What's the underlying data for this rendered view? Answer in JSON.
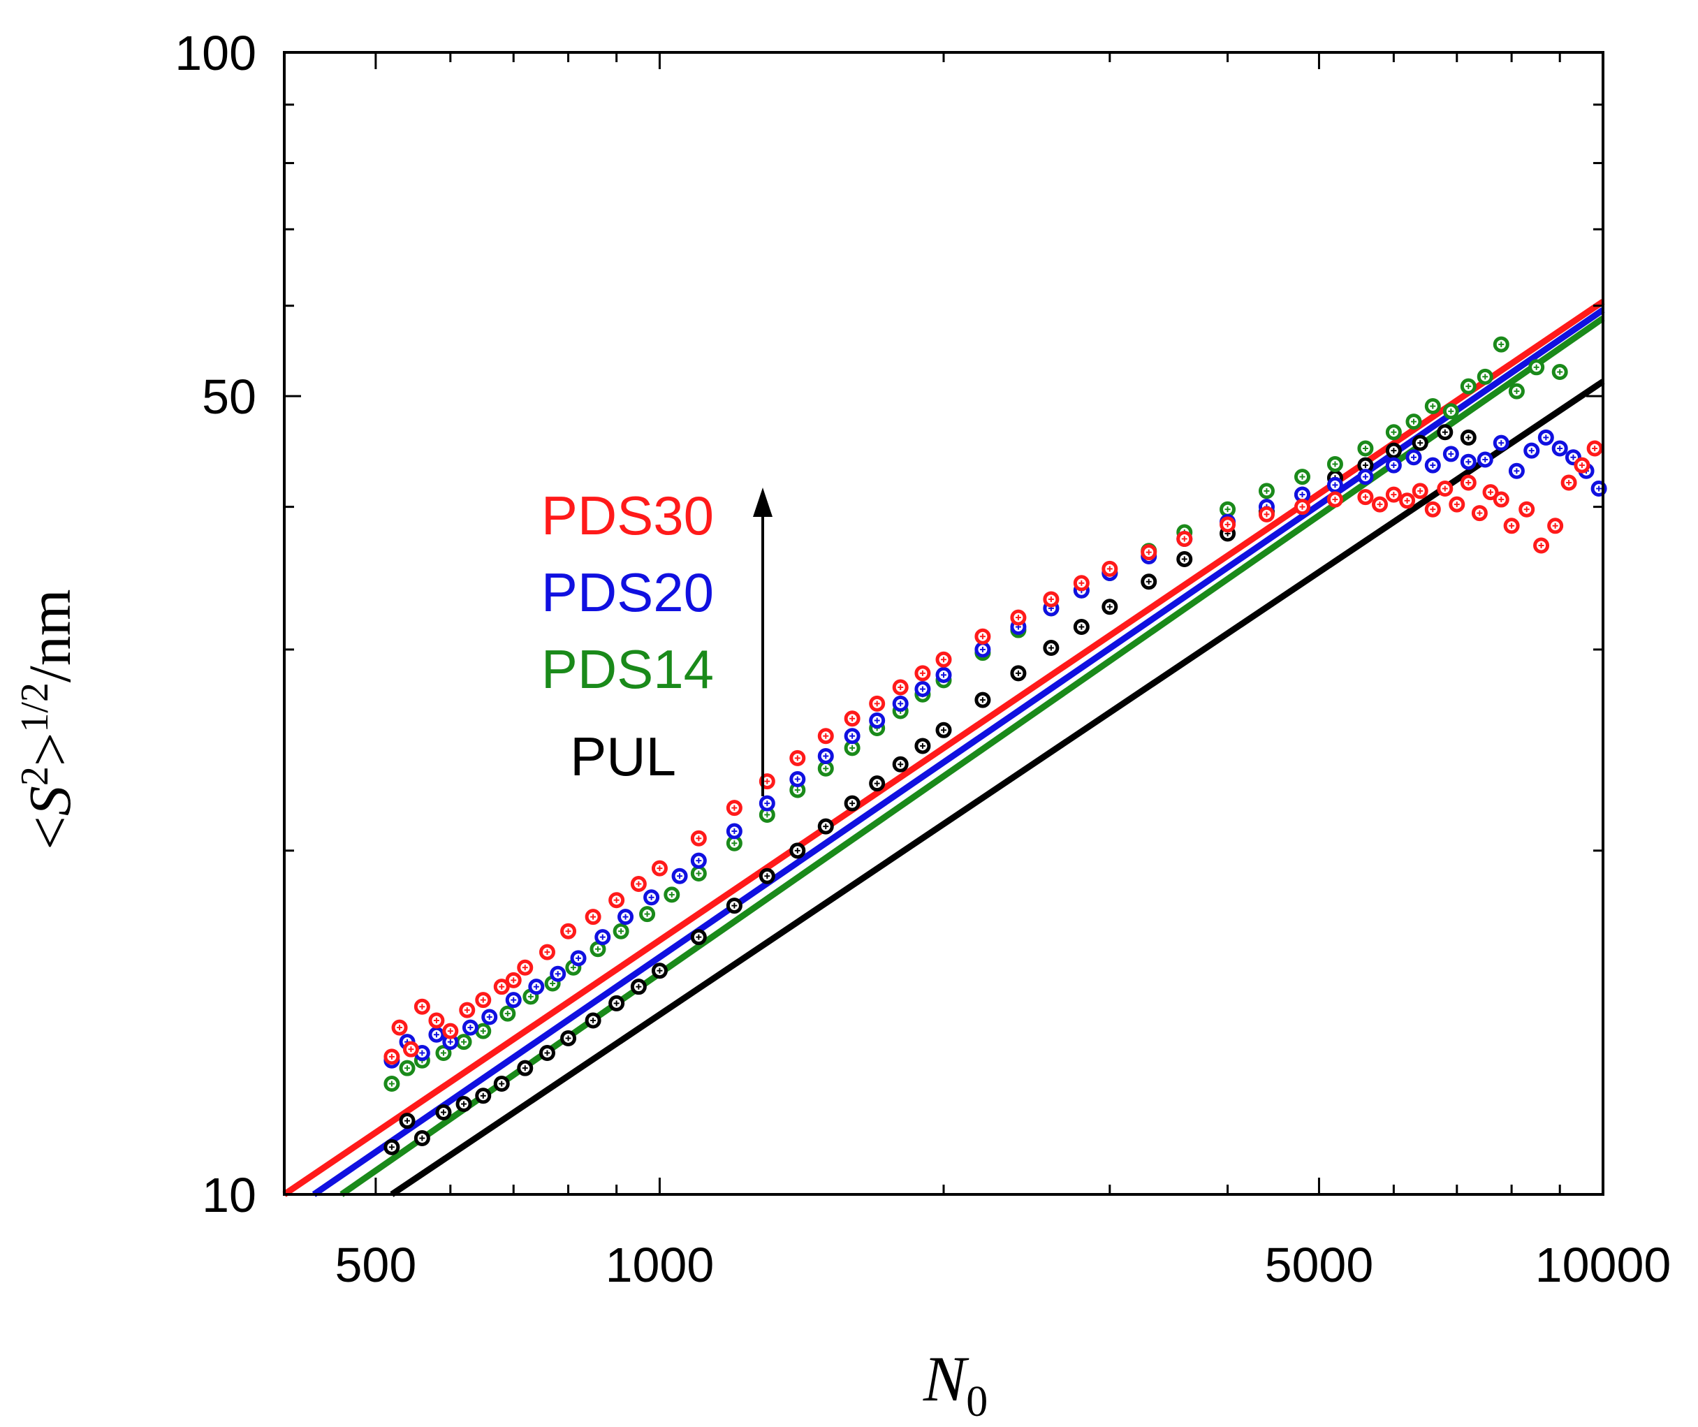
{
  "chart_data": {
    "type": "scatter",
    "title": "",
    "xlabel": "N_0",
    "xlabel_main": "N",
    "xlabel_sub": "0",
    "ylabel": "<S^2>^{1/2}/nm",
    "ylabel_parts": {
      "lt": "<",
      "s": "S",
      "sq": "2",
      "gt": ">",
      "half": "1/2",
      "unit": "/nm"
    },
    "xscale": "log",
    "yscale": "log",
    "xlim": [
      400,
      10000
    ],
    "ylim": [
      10,
      100
    ],
    "xticks": [
      {
        "value": 500,
        "label": "500"
      },
      {
        "value": 1000,
        "label": "1000"
      },
      {
        "value": 5000,
        "label": "5000"
      },
      {
        "value": 10000,
        "label": "10000"
      }
    ],
    "xminor": [
      600,
      700,
      800,
      900,
      2000,
      3000,
      4000,
      6000,
      7000,
      8000,
      9000
    ],
    "yticks": [
      {
        "value": 10,
        "label": "10"
      },
      {
        "value": 50,
        "label": "50"
      },
      {
        "value": 100,
        "label": "100"
      }
    ],
    "yminor": [
      20,
      30,
      40,
      60,
      70,
      80,
      90
    ],
    "grid": false,
    "legend_position": "center-left",
    "arrow_note": "increasing order",
    "series": [
      {
        "name": "PDS30",
        "color": "#ff1a1a",
        "fit": {
          "x": [
            400,
            10000
          ],
          "y": [
            10.0,
            60.5
          ]
        },
        "x": [
          520,
          530,
          545,
          560,
          580,
          600,
          625,
          650,
          680,
          700,
          720,
          760,
          800,
          850,
          900,
          950,
          1000,
          1100,
          1200,
          1300,
          1400,
          1500,
          1600,
          1700,
          1800,
          1900,
          2000,
          2200,
          2400,
          2600,
          2800,
          3000,
          3300,
          3600,
          4000,
          4400,
          4800,
          5200,
          5600,
          5800,
          6000,
          6200,
          6400,
          6600,
          6800,
          7000,
          7200,
          7400,
          7600,
          7800,
          8000,
          8300,
          8600,
          8900,
          9200,
          9500,
          9800
        ],
        "y": [
          13.2,
          14.0,
          13.4,
          14.6,
          14.2,
          13.9,
          14.5,
          14.8,
          15.2,
          15.4,
          15.8,
          16.3,
          17.0,
          17.5,
          18.1,
          18.7,
          19.3,
          20.5,
          21.8,
          23.0,
          24.1,
          25.2,
          26.1,
          26.9,
          27.8,
          28.6,
          29.4,
          30.8,
          32.0,
          33.2,
          34.3,
          35.3,
          36.5,
          37.5,
          38.6,
          39.4,
          40.0,
          40.6,
          40.8,
          40.2,
          41.0,
          40.5,
          41.3,
          39.8,
          41.5,
          40.2,
          42.0,
          39.5,
          41.2,
          40.6,
          38.5,
          39.8,
          37.0,
          38.5,
          42.0,
          43.5,
          45.0
        ]
      },
      {
        "name": "PDS20",
        "color": "#1010e0",
        "fit": {
          "x": [
            430,
            10000
          ],
          "y": [
            10.0,
            59.5
          ]
        },
        "x": [
          520,
          540,
          560,
          580,
          600,
          630,
          660,
          700,
          740,
          780,
          820,
          870,
          920,
          980,
          1050,
          1100,
          1200,
          1300,
          1400,
          1500,
          1600,
          1700,
          1800,
          1900,
          2000,
          2200,
          2400,
          2600,
          2800,
          3000,
          3300,
          3600,
          4000,
          4400,
          4800,
          5200,
          5600,
          6000,
          6300,
          6600,
          6900,
          7200,
          7500,
          7800,
          8100,
          8400,
          8700,
          9000,
          9300,
          9600,
          9900
        ],
        "y": [
          13.1,
          13.6,
          13.3,
          13.8,
          13.6,
          14.0,
          14.3,
          14.8,
          15.2,
          15.6,
          16.1,
          16.8,
          17.5,
          18.2,
          19.0,
          19.6,
          20.8,
          22.0,
          23.1,
          24.2,
          25.2,
          26.0,
          26.9,
          27.7,
          28.5,
          30.0,
          31.4,
          32.6,
          33.8,
          35.0,
          36.2,
          37.5,
          38.8,
          40.0,
          41.0,
          41.8,
          42.5,
          43.5,
          44.2,
          43.5,
          44.5,
          43.8,
          44.0,
          45.5,
          43.0,
          44.8,
          46.0,
          45.0,
          44.2,
          43.0,
          41.5
        ]
      },
      {
        "name": "PDS14",
        "color": "#1a8a1a",
        "fit": {
          "x": [
            460,
            10000
          ],
          "y": [
            10.0,
            58.5
          ]
        },
        "x": [
          520,
          540,
          560,
          590,
          620,
          650,
          690,
          730,
          770,
          810,
          860,
          910,
          970,
          1030,
          1100,
          1200,
          1300,
          1400,
          1500,
          1600,
          1700,
          1800,
          1900,
          2000,
          2200,
          2400,
          2600,
          2800,
          3000,
          3300,
          3600,
          4000,
          4400,
          4800,
          5200,
          5600,
          6000,
          6300,
          6600,
          6900,
          7200,
          7500,
          7800,
          8100,
          8500,
          9000
        ],
        "y": [
          12.5,
          12.9,
          13.1,
          13.3,
          13.6,
          13.9,
          14.4,
          14.9,
          15.3,
          15.8,
          16.4,
          17.0,
          17.6,
          18.3,
          19.1,
          20.3,
          21.5,
          22.6,
          23.6,
          24.6,
          25.6,
          26.5,
          27.4,
          28.2,
          29.8,
          31.2,
          32.6,
          33.8,
          35.0,
          36.6,
          38.0,
          39.8,
          41.3,
          42.5,
          43.6,
          45.0,
          46.5,
          47.5,
          49.0,
          48.5,
          51.0,
          52.0,
          55.5,
          50.5,
          53.0,
          52.5
        ]
      },
      {
        "name": "PUL",
        "color": "#000000",
        "fit": {
          "x": [
            520,
            10000
          ],
          "y": [
            10.0,
            51.5
          ]
        },
        "x": [
          520,
          540,
          560,
          590,
          620,
          650,
          680,
          720,
          760,
          800,
          850,
          900,
          950,
          1000,
          1100,
          1200,
          1300,
          1400,
          1500,
          1600,
          1700,
          1800,
          1900,
          2000,
          2200,
          2400,
          2600,
          2800,
          3000,
          3300,
          3600,
          4000,
          4400,
          4800,
          5200,
          5600,
          6000,
          6400,
          6800,
          7200
        ],
        "y": [
          11.0,
          11.6,
          11.2,
          11.8,
          12.0,
          12.2,
          12.5,
          12.9,
          13.3,
          13.7,
          14.2,
          14.7,
          15.2,
          15.7,
          16.8,
          17.9,
          19.0,
          20.0,
          21.0,
          22.0,
          22.9,
          23.8,
          24.7,
          25.5,
          27.1,
          28.6,
          30.1,
          31.4,
          32.7,
          34.4,
          36.0,
          37.9,
          39.6,
          41.0,
          42.4,
          43.5,
          44.8,
          45.5,
          46.5,
          46.0
        ]
      }
    ],
    "legend": [
      {
        "label": "PDS30",
        "color": "#ff1a1a"
      },
      {
        "label": "PDS20",
        "color": "#1010e0"
      },
      {
        "label": "PDS14",
        "color": "#1a8a1a"
      },
      {
        "label": "PUL",
        "color": "#000000"
      }
    ]
  }
}
